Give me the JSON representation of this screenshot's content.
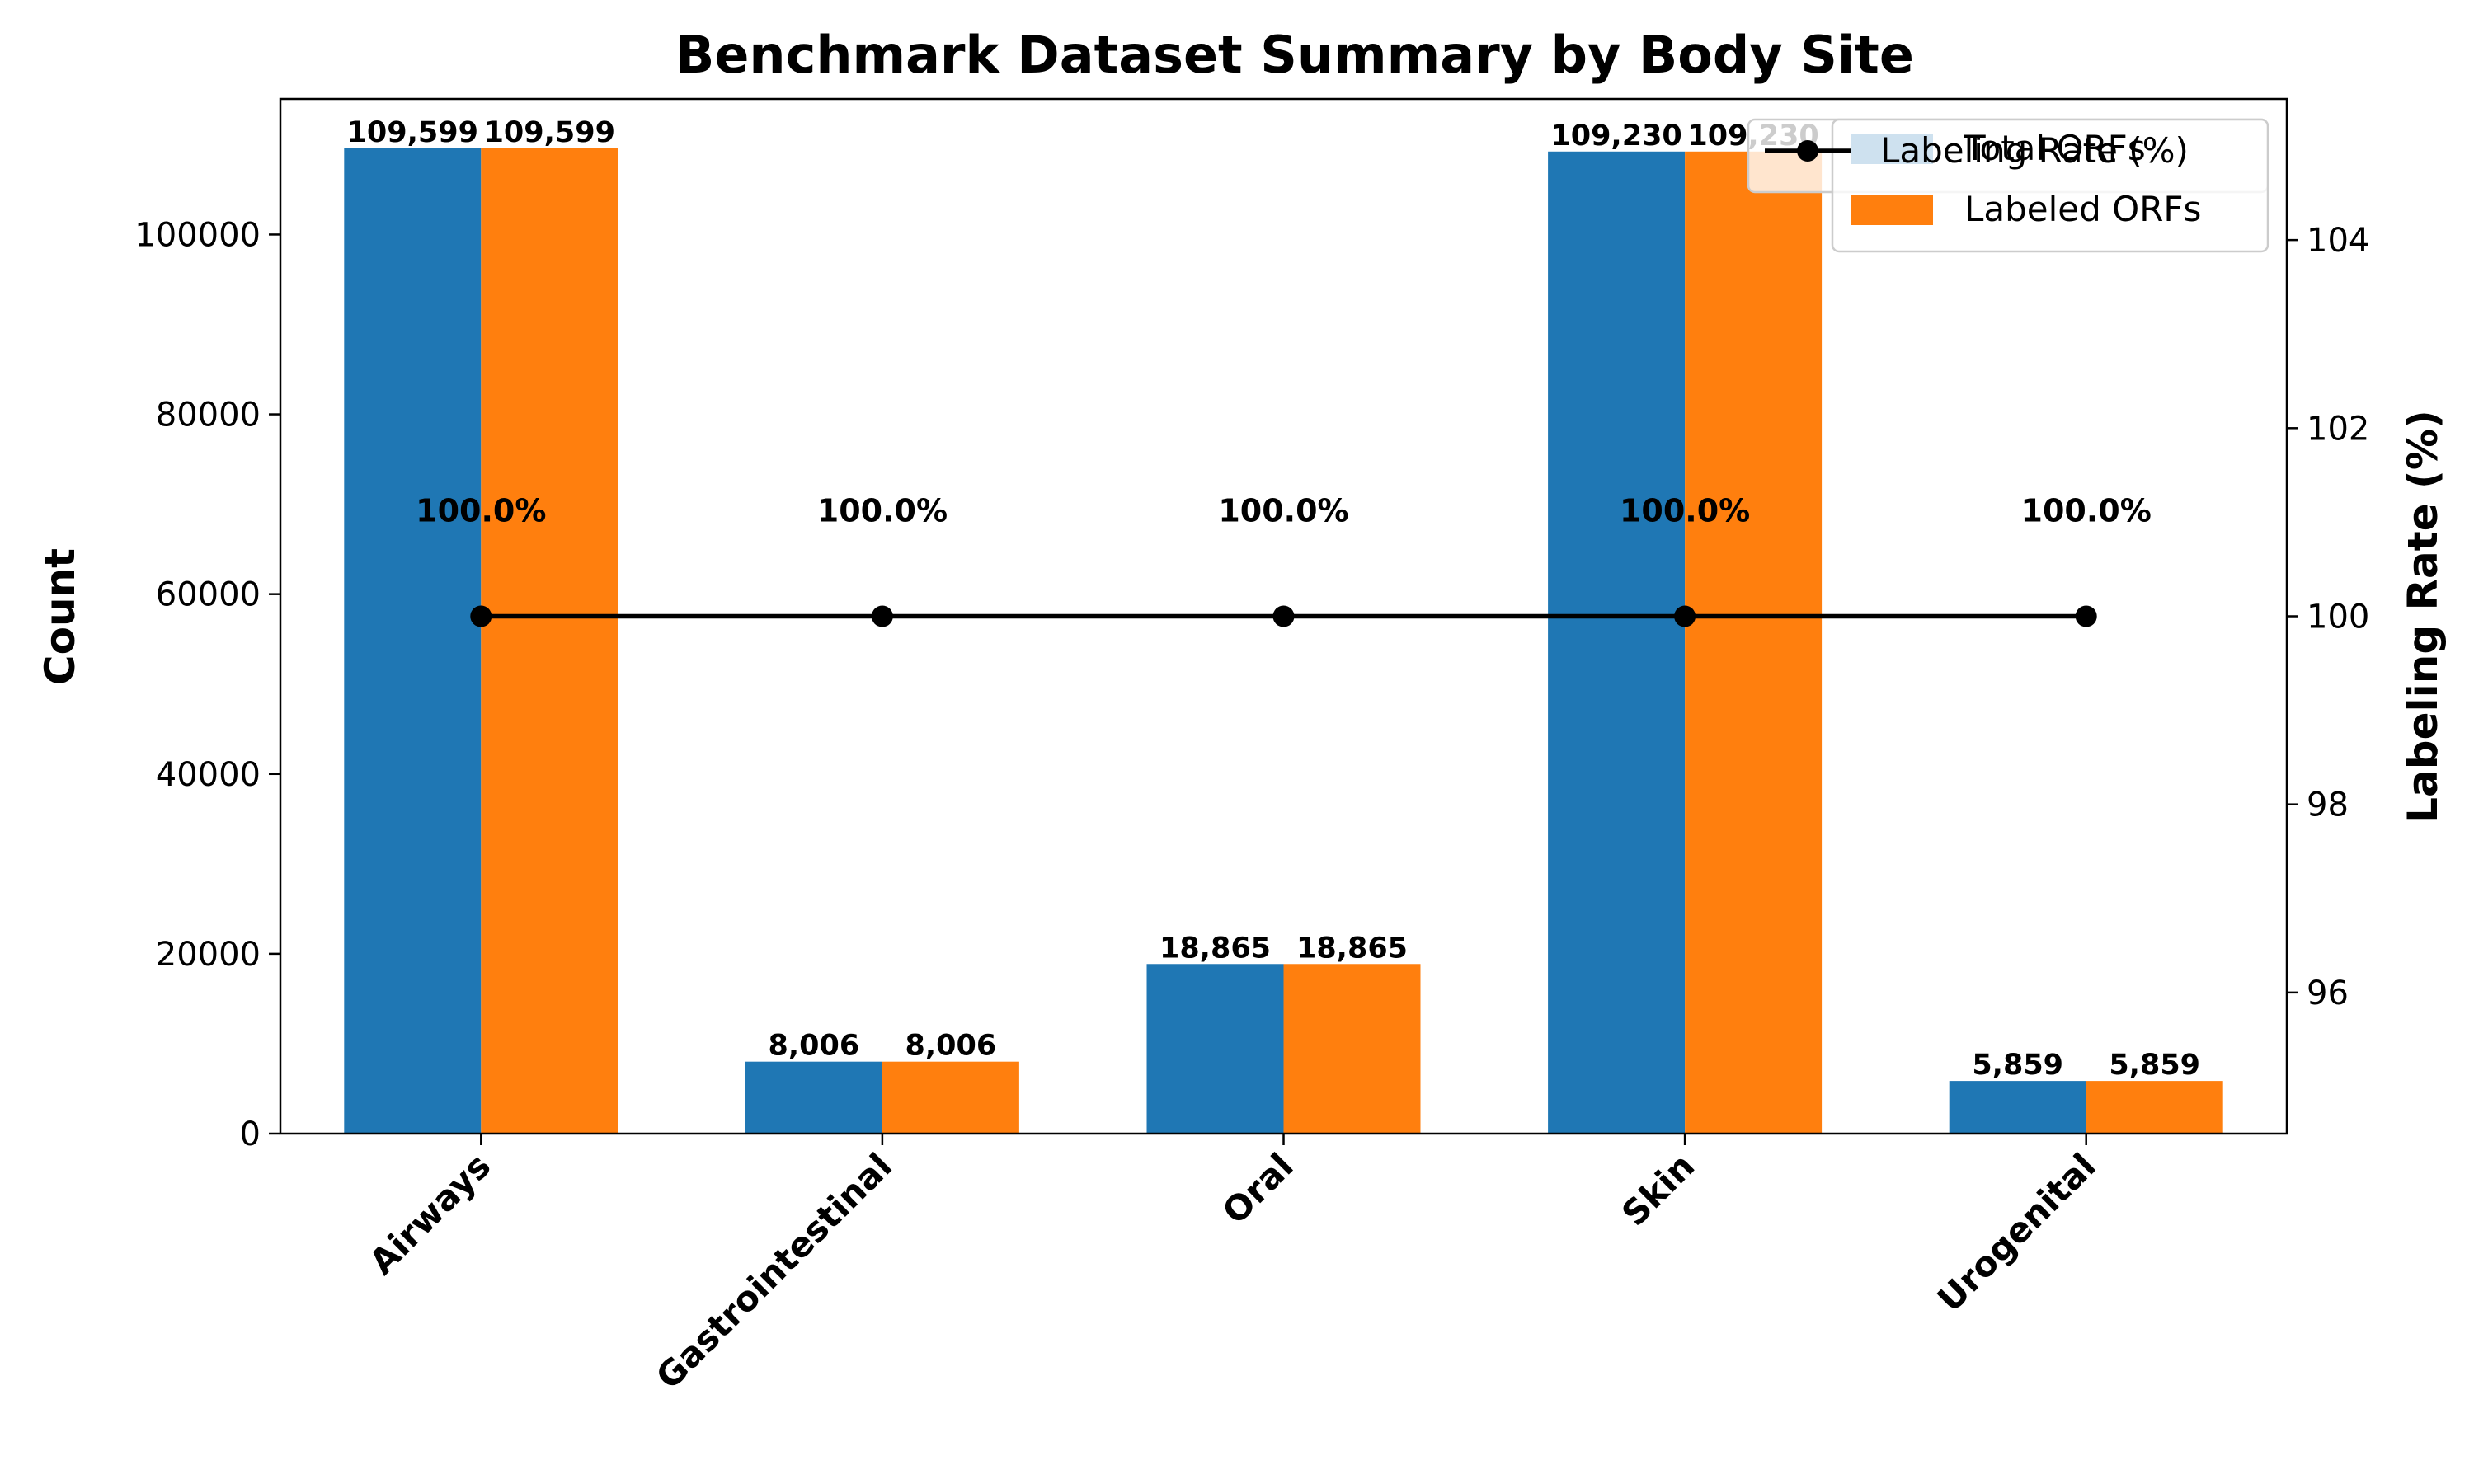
{
  "chart_data": {
    "type": "bar",
    "title": "Benchmark Dataset Summary by Body Site",
    "xlabel": "",
    "ylabel": "Count",
    "y2label": "Labeling Rate (%)",
    "categories": [
      "Airways",
      "Gastrointestinal",
      "Oral",
      "Skin",
      "Urogenital"
    ],
    "series": [
      {
        "name": "Total ORFs",
        "type": "bar",
        "axis": "left",
        "color": "#1f77b4",
        "values": [
          109599,
          8006,
          18865,
          109230,
          5859
        ],
        "labels": [
          "109,599",
          "8,006",
          "18,865",
          "109,230",
          "5,859"
        ]
      },
      {
        "name": "Labeled ORFs",
        "type": "bar",
        "axis": "left",
        "color": "#ff7f0e",
        "values": [
          109599,
          8006,
          18865,
          109230,
          5859
        ],
        "labels": [
          "109,599",
          "8,006",
          "18,865",
          "109,230",
          "5,859"
        ]
      },
      {
        "name": "Labeling Rate (%)",
        "type": "line",
        "axis": "right",
        "color": "#000000",
        "values": [
          100.0,
          100.0,
          100.0,
          100.0,
          100.0
        ],
        "labels": [
          "100.0%",
          "100.0%",
          "100.0%",
          "100.0%",
          "100.0%"
        ]
      }
    ],
    "ylim": [
      0,
      115079
    ],
    "y2lim": [
      94.5,
      105.5
    ],
    "yticks": [
      0,
      20000,
      40000,
      60000,
      80000,
      100000
    ],
    "y2ticks": [
      96,
      98,
      100,
      102,
      104
    ],
    "grid": false,
    "legend": "top-right"
  }
}
